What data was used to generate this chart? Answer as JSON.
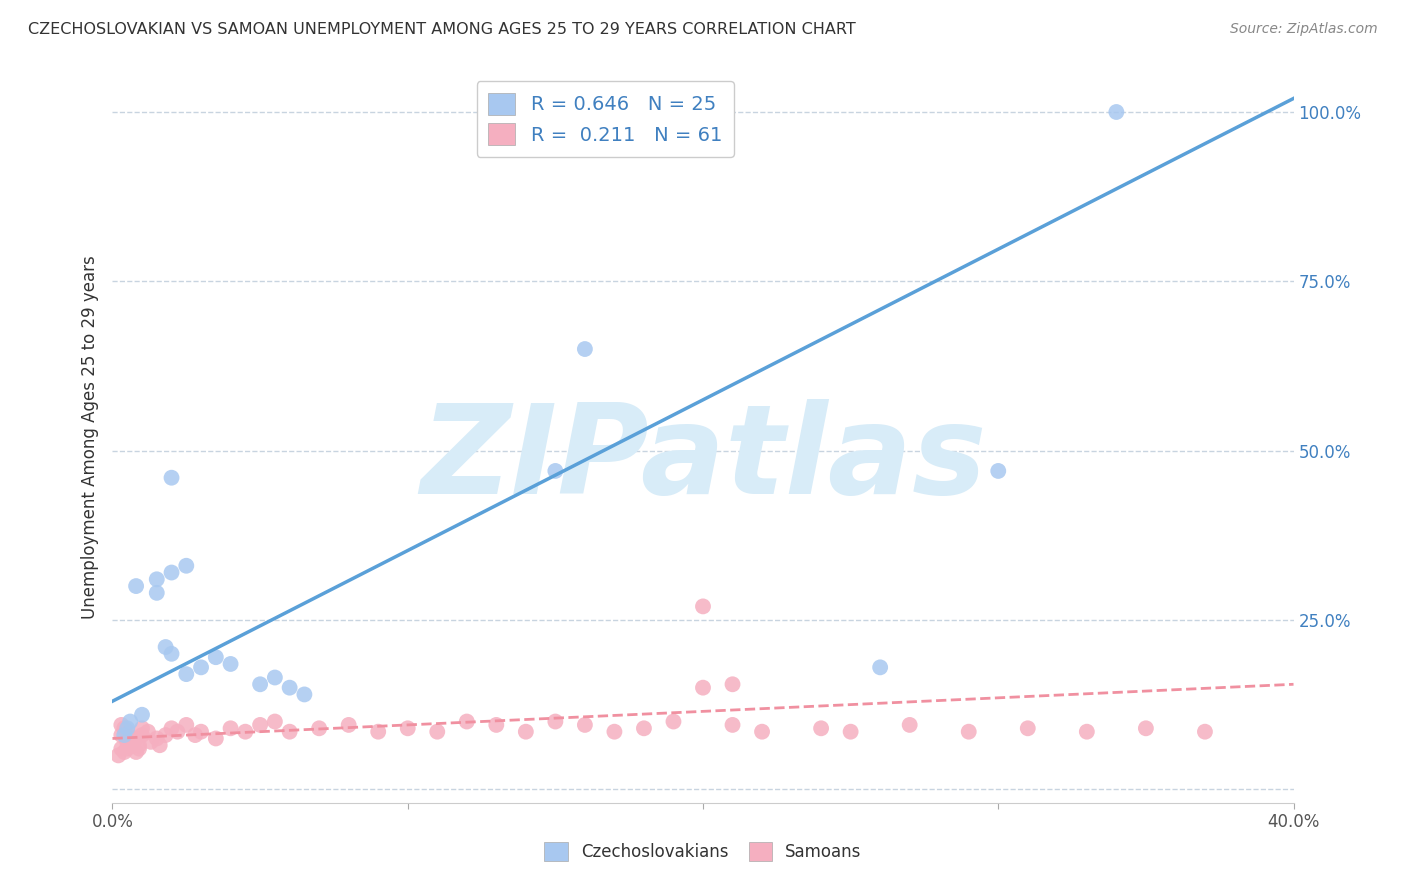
{
  "title": "CZECHOSLOVAKIAN VS SAMOAN UNEMPLOYMENT AMONG AGES 25 TO 29 YEARS CORRELATION CHART",
  "source": "Source: ZipAtlas.com",
  "ylabel": "Unemployment Among Ages 25 to 29 years",
  "xlim": [
    0.0,
    0.4
  ],
  "ylim": [
    -0.02,
    1.06
  ],
  "yticks": [
    0.0,
    0.25,
    0.5,
    0.75,
    1.0
  ],
  "ytick_labels": [
    "",
    "25.0%",
    "50.0%",
    "75.0%",
    "100.0%"
  ],
  "legend_R_czech": "0.646",
  "legend_N_czech": "25",
  "legend_R_samoan": "0.211",
  "legend_N_samoan": "61",
  "czech_color": "#a8c8f0",
  "samoan_color": "#f5afc0",
  "czech_line_color": "#5aA0d8",
  "samoan_line_color": "#f090a0",
  "watermark_color": "#d8ecf8",
  "background_color": "#ffffff",
  "czech_line_x": [
    0.0,
    0.4
  ],
  "czech_line_y": [
    0.13,
    1.02
  ],
  "samoan_line_x": [
    0.0,
    0.4
  ],
  "samoan_line_y": [
    0.075,
    0.155
  ],
  "grid_color": "#c8d4e0",
  "legend_text_color": "#4080c0",
  "title_color": "#333333",
  "tick_color": "#555555",
  "czech_x": [
    0.005,
    0.008,
    0.01,
    0.015,
    0.015,
    0.018,
    0.02,
    0.02,
    0.025,
    0.025,
    0.03,
    0.035,
    0.04,
    0.05,
    0.055,
    0.06,
    0.065,
    0.02,
    0.15,
    0.16,
    0.26,
    0.3,
    0.34,
    0.004,
    0.006
  ],
  "czech_y": [
    0.09,
    0.3,
    0.11,
    0.29,
    0.31,
    0.21,
    0.32,
    0.2,
    0.17,
    0.33,
    0.18,
    0.195,
    0.185,
    0.155,
    0.165,
    0.15,
    0.14,
    0.46,
    0.47,
    0.65,
    0.18,
    0.47,
    1.0,
    0.08,
    0.1
  ],
  "sam_x": [
    0.002,
    0.003,
    0.004,
    0.005,
    0.005,
    0.006,
    0.007,
    0.008,
    0.009,
    0.003,
    0.004,
    0.005,
    0.006,
    0.007,
    0.003,
    0.008,
    0.009,
    0.01,
    0.01,
    0.012,
    0.013,
    0.015,
    0.016,
    0.018,
    0.02,
    0.022,
    0.025,
    0.028,
    0.03,
    0.035,
    0.04,
    0.045,
    0.05,
    0.055,
    0.06,
    0.07,
    0.08,
    0.09,
    0.1,
    0.11,
    0.12,
    0.13,
    0.14,
    0.15,
    0.16,
    0.17,
    0.18,
    0.19,
    0.2,
    0.21,
    0.22,
    0.24,
    0.25,
    0.27,
    0.29,
    0.31,
    0.33,
    0.35,
    0.37,
    0.2,
    0.21
  ],
  "sam_y": [
    0.05,
    0.06,
    0.055,
    0.07,
    0.06,
    0.065,
    0.075,
    0.055,
    0.06,
    0.08,
    0.09,
    0.085,
    0.07,
    0.065,
    0.095,
    0.075,
    0.065,
    0.08,
    0.09,
    0.085,
    0.07,
    0.075,
    0.065,
    0.08,
    0.09,
    0.085,
    0.095,
    0.08,
    0.085,
    0.075,
    0.09,
    0.085,
    0.095,
    0.1,
    0.085,
    0.09,
    0.095,
    0.085,
    0.09,
    0.085,
    0.1,
    0.095,
    0.085,
    0.1,
    0.095,
    0.085,
    0.09,
    0.1,
    0.27,
    0.095,
    0.085,
    0.09,
    0.085,
    0.095,
    0.085,
    0.09,
    0.085,
    0.09,
    0.085,
    0.15,
    0.155
  ]
}
